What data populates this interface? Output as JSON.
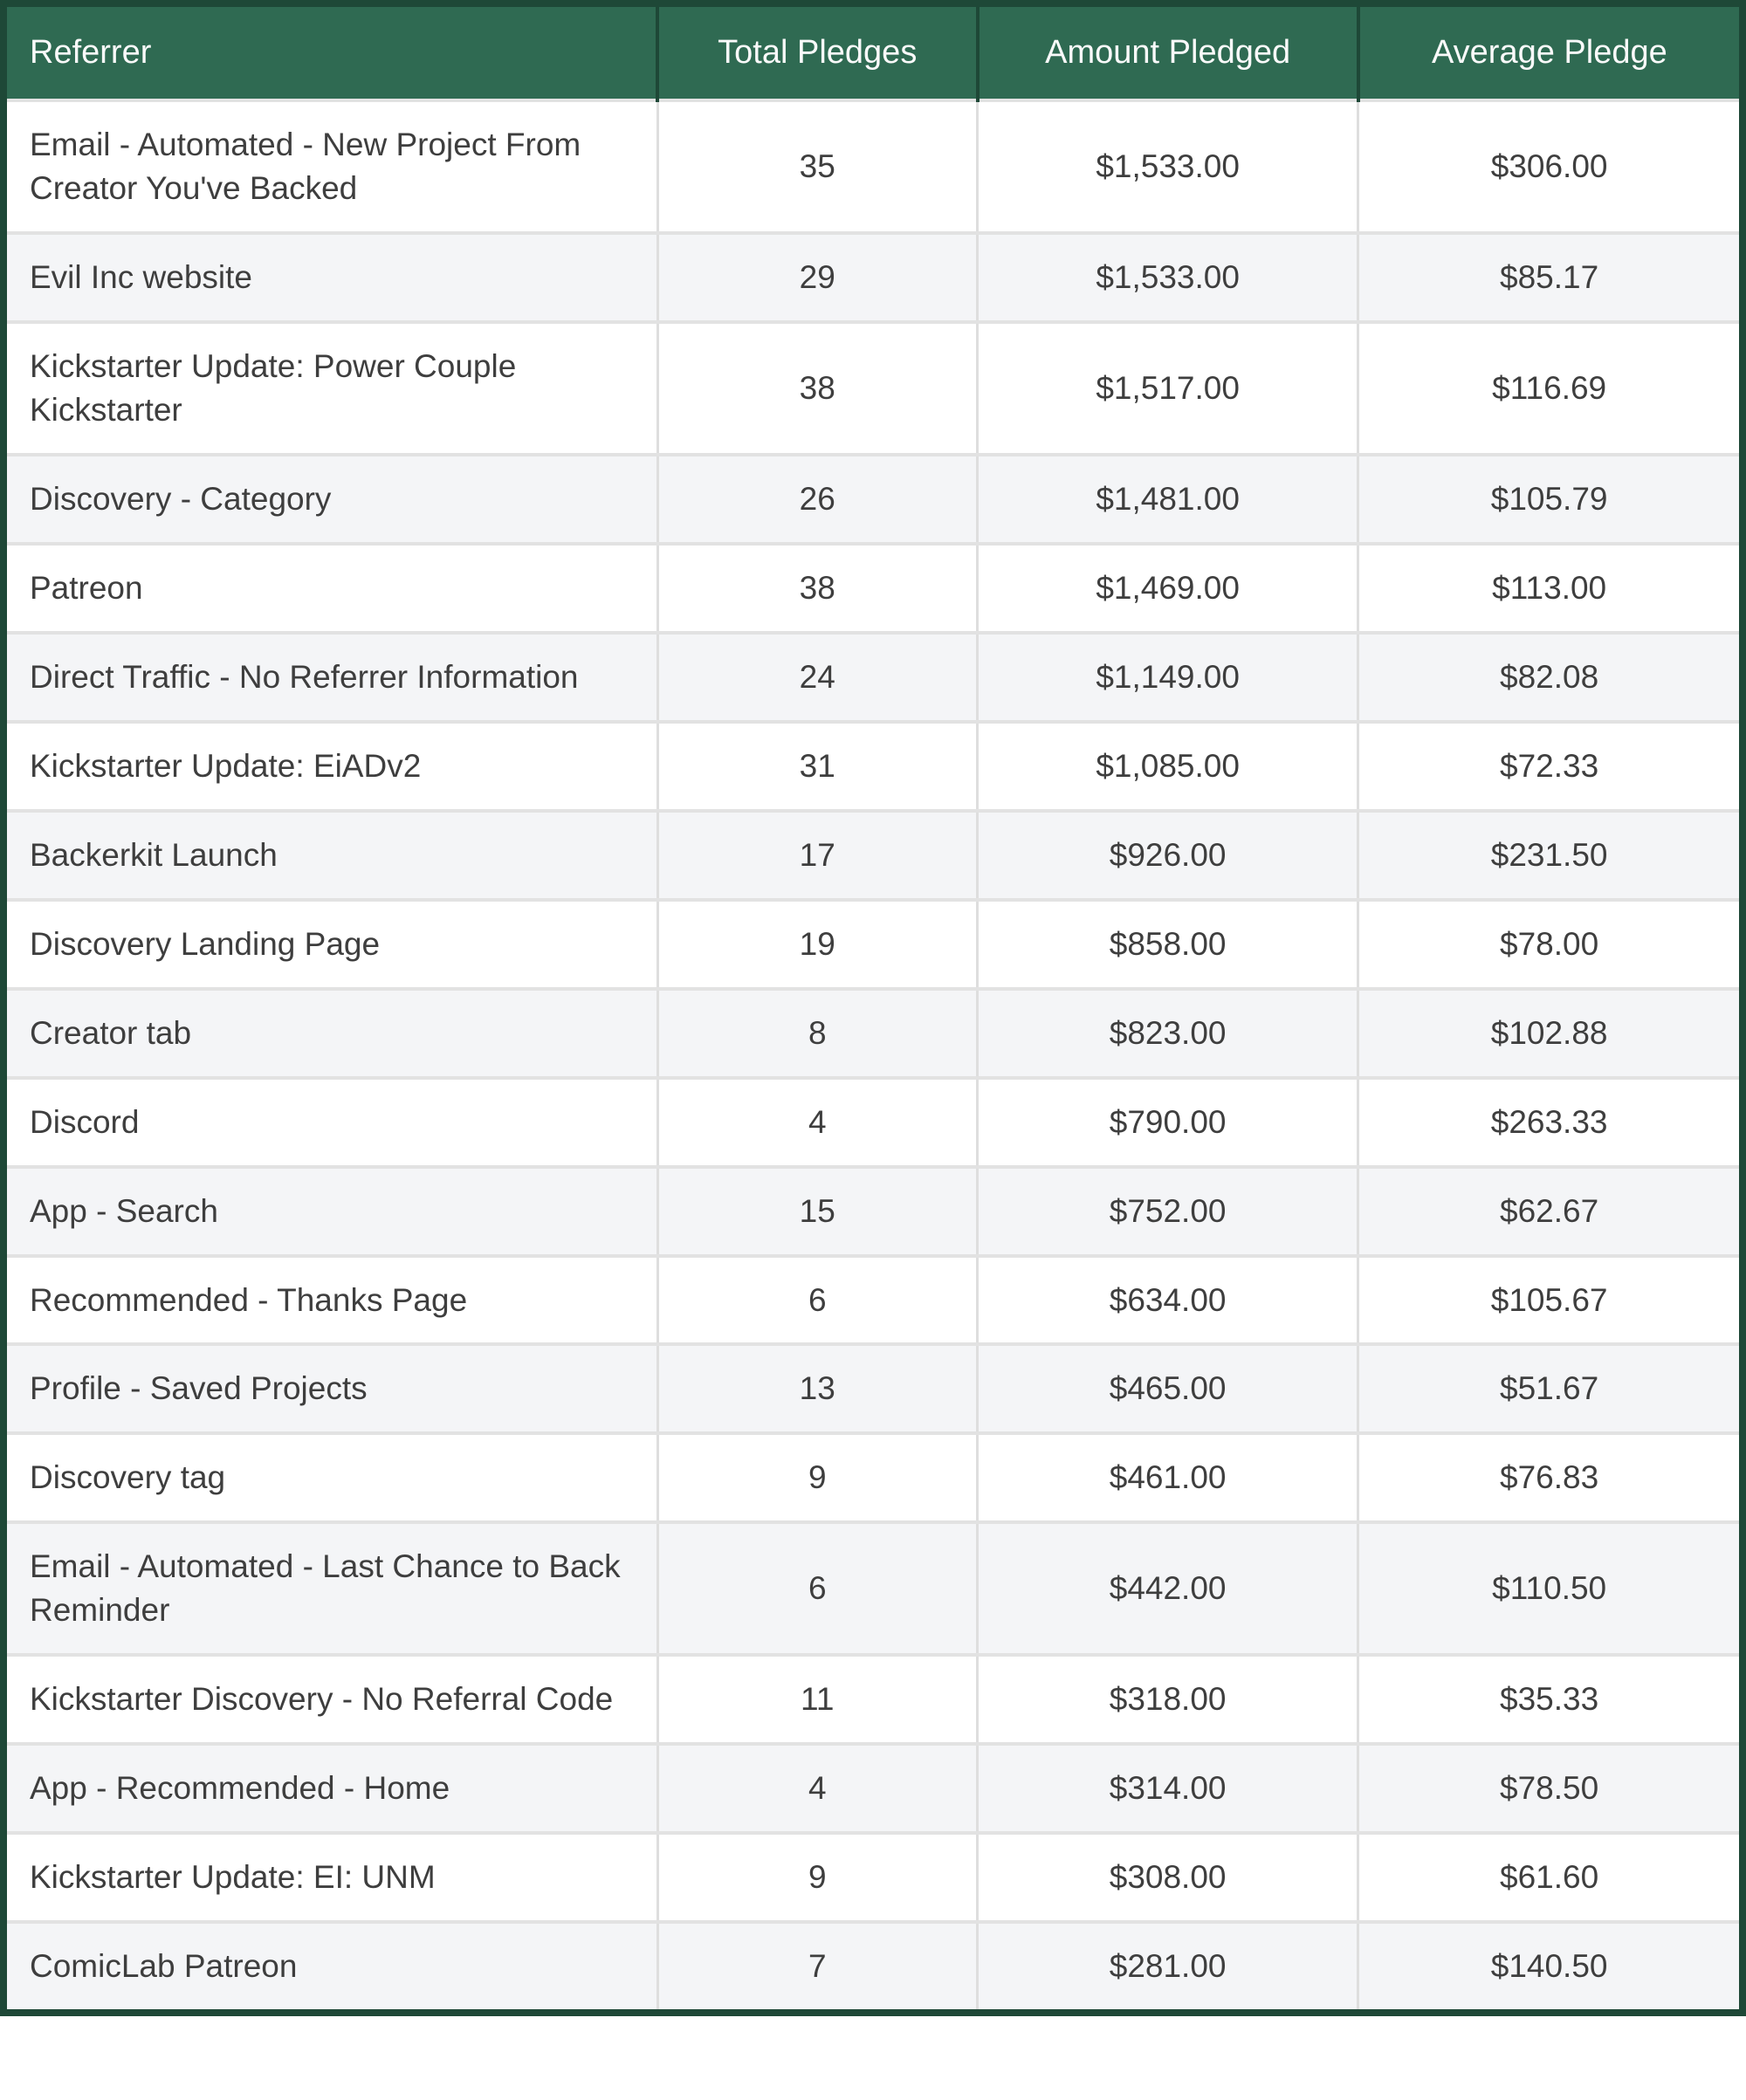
{
  "ui": {
    "colors": {
      "header_bg": "#2F6A52",
      "header_text": "#FAFAFA",
      "outer_border": "#1E4837",
      "row_bg": "#FFFFFF",
      "alt_row_bg": "#F4F5F7",
      "divider": "#E2E2E2",
      "body_text": "#3E3E3E"
    }
  },
  "table": {
    "headers": [
      "Referrer",
      "Total Pledges",
      "Amount Pledged",
      "Average Pledge"
    ],
    "rows": [
      {
        "referrer": "Email - Automated - New Project From Creator You've Backed",
        "total_pledges": "35",
        "amount_pledged": "$1,533.00",
        "average_pledge": "$306.00"
      },
      {
        "referrer": "Evil Inc website",
        "total_pledges": "29",
        "amount_pledged": "$1,533.00",
        "average_pledge": "$85.17"
      },
      {
        "referrer": "Kickstarter Update: Power Couple Kickstarter",
        "total_pledges": "38",
        "amount_pledged": "$1,517.00",
        "average_pledge": "$116.69"
      },
      {
        "referrer": "Discovery - Category",
        "total_pledges": "26",
        "amount_pledged": "$1,481.00",
        "average_pledge": "$105.79"
      },
      {
        "referrer": "Patreon",
        "total_pledges": "38",
        "amount_pledged": "$1,469.00",
        "average_pledge": "$113.00"
      },
      {
        "referrer": "Direct Traffic - No Referrer Information",
        "total_pledges": "24",
        "amount_pledged": "$1,149.00",
        "average_pledge": "$82.08"
      },
      {
        "referrer": "Kickstarter Update: EiADv2",
        "total_pledges": "31",
        "amount_pledged": "$1,085.00",
        "average_pledge": "$72.33"
      },
      {
        "referrer": "Backerkit Launch",
        "total_pledges": "17",
        "amount_pledged": "$926.00",
        "average_pledge": "$231.50"
      },
      {
        "referrer": "Discovery Landing Page",
        "total_pledges": "19",
        "amount_pledged": "$858.00",
        "average_pledge": "$78.00"
      },
      {
        "referrer": "Creator tab",
        "total_pledges": "8",
        "amount_pledged": "$823.00",
        "average_pledge": "$102.88"
      },
      {
        "referrer": "Discord",
        "total_pledges": "4",
        "amount_pledged": "$790.00",
        "average_pledge": "$263.33"
      },
      {
        "referrer": "App - Search",
        "total_pledges": "15",
        "amount_pledged": "$752.00",
        "average_pledge": "$62.67"
      },
      {
        "referrer": "Recommended - Thanks Page",
        "total_pledges": "6",
        "amount_pledged": "$634.00",
        "average_pledge": "$105.67"
      },
      {
        "referrer": "Profile - Saved Projects",
        "total_pledges": "13",
        "amount_pledged": "$465.00",
        "average_pledge": "$51.67"
      },
      {
        "referrer": "Discovery tag",
        "total_pledges": "9",
        "amount_pledged": "$461.00",
        "average_pledge": "$76.83"
      },
      {
        "referrer": "Email - Automated - Last Chance to Back Reminder",
        "total_pledges": "6",
        "amount_pledged": "$442.00",
        "average_pledge": "$110.50"
      },
      {
        "referrer": "Kickstarter Discovery - No Referral Code",
        "total_pledges": "11",
        "amount_pledged": "$318.00",
        "average_pledge": "$35.33"
      },
      {
        "referrer": "App - Recommended - Home",
        "total_pledges": "4",
        "amount_pledged": "$314.00",
        "average_pledge": "$78.50"
      },
      {
        "referrer": "Kickstarter Update: EI: UNM",
        "total_pledges": "9",
        "amount_pledged": "$308.00",
        "average_pledge": "$61.60"
      },
      {
        "referrer": "ComicLab Patreon",
        "total_pledges": "7",
        "amount_pledged": "$281.00",
        "average_pledge": "$140.50"
      }
    ]
  }
}
